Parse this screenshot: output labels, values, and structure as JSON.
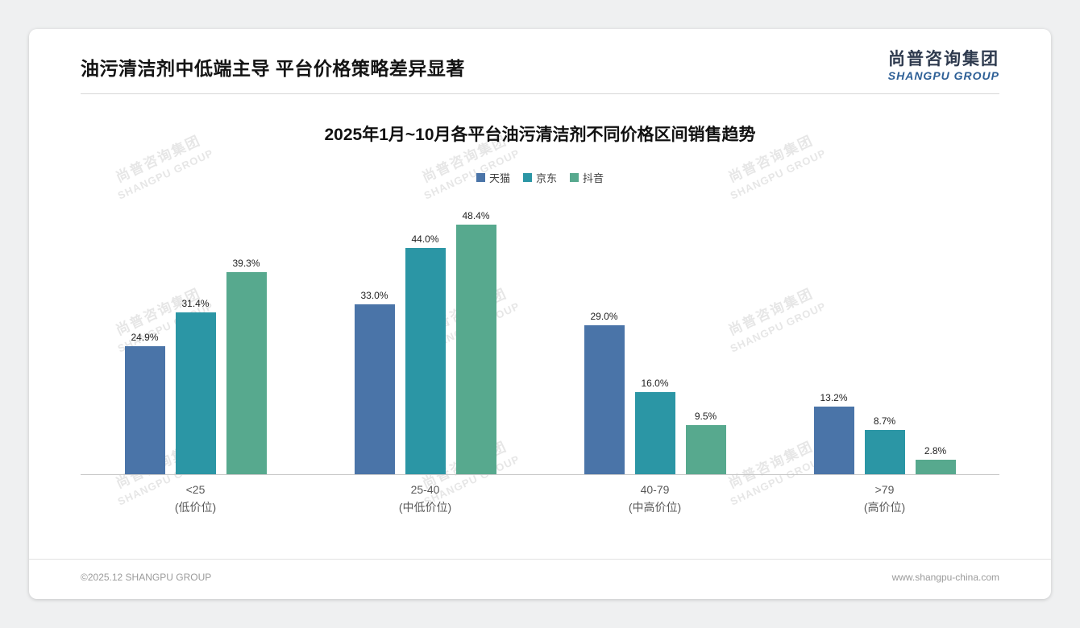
{
  "page": {
    "header_title": "油污清洁剂中低端主导 平台价格策略差异显著",
    "logo_cn": "尚普咨询集团",
    "logo_en": "SHANGPU GROUP",
    "footer_left": "©2025.12 SHANGPU GROUP",
    "footer_right": "www.shangpu-china.com",
    "watermark_cn": "尚普咨询集团",
    "watermark_en": "SHANGPU GROUP"
  },
  "chart_data": {
    "type": "bar",
    "title": "2025年1月~10月各平台油污清洁剂不同价格区间销售趋势",
    "categories": [
      "<25",
      "25-40",
      "40-79",
      ">79"
    ],
    "category_sublabels": [
      "(低价位)",
      "(中低价位)",
      "(中高价位)",
      "(高价位)"
    ],
    "series": [
      {
        "name": "天猫",
        "color": "#4a74a8",
        "values": [
          24.9,
          33.0,
          29.0,
          13.2
        ]
      },
      {
        "name": "京东",
        "color": "#2b96a5",
        "values": [
          31.4,
          44.0,
          16.0,
          8.7
        ]
      },
      {
        "name": "抖音",
        "color": "#57a98e",
        "values": [
          39.3,
          48.4,
          9.5,
          2.8
        ]
      }
    ],
    "value_suffix": "%",
    "ylim": [
      0,
      50
    ],
    "legend_position": "top",
    "grid": false
  }
}
